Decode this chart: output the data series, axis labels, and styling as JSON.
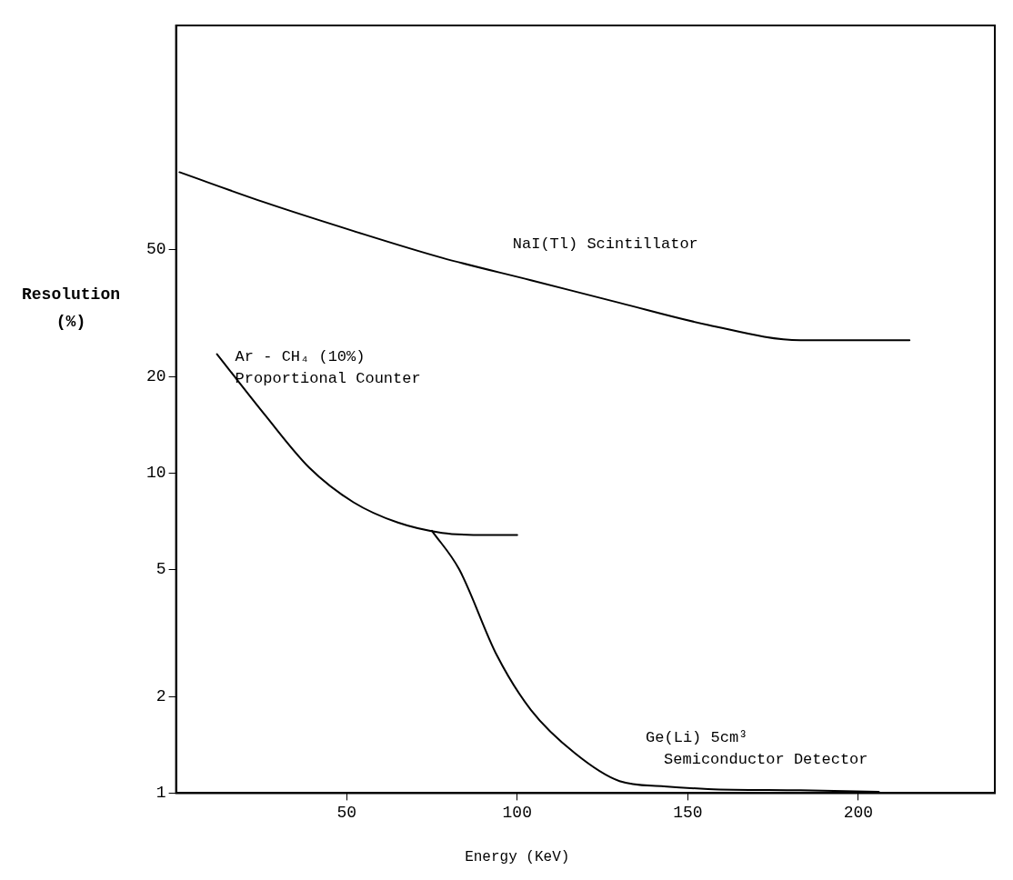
{
  "chart_data": {
    "type": "line",
    "xlabel": "Energy (KeV)",
    "ylabel": "Resolution (%)",
    "log": "y",
    "xlim": [
      0,
      240
    ],
    "xticks": [
      50,
      100,
      150,
      200
    ],
    "ylim": [
      1,
      250
    ],
    "yticks": [
      1,
      2,
      5,
      10,
      20,
      50
    ],
    "grid": false,
    "legend": false,
    "marker": "none",
    "line_style": "solid",
    "series": [
      {
        "name": "NaI(Tl) Scintillator",
        "color": "#000000",
        "x": [
          1,
          26,
          52,
          78,
          104,
          130,
          156,
          183,
          209,
          215
        ],
        "values": [
          87,
          70,
          57,
          47,
          40,
          34,
          29,
          26,
          26,
          26
        ]
      },
      {
        "name": "Ar - CH₄ (10%) Proportional Counter",
        "color": "#000000",
        "x": [
          12,
          26,
          39,
          52,
          65,
          78,
          91,
          100
        ],
        "values": [
          23.5,
          15.2,
          10.4,
          8.1,
          7.0,
          6.5,
          6.4,
          6.4
        ]
      },
      {
        "name": "Ge(Li) 5cm³ Semiconductor Detector",
        "color": "#000000",
        "x": [
          75,
          83,
          94,
          104,
          117,
          130,
          143,
          156,
          183,
          206
        ],
        "values": [
          6.6,
          5,
          2.7,
          1.82,
          1.33,
          1.09,
          1.05,
          1.03,
          1.02,
          1.01
        ]
      }
    ]
  }
}
